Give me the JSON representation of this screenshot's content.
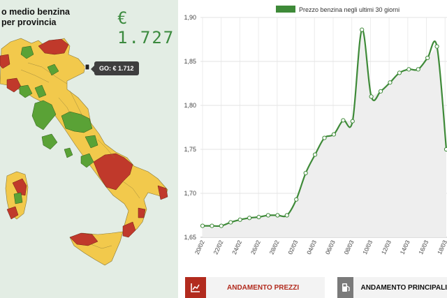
{
  "map": {
    "title_line1": "o medio benzina",
    "title_line2": "per provincia",
    "price_display": "€ 1.727",
    "tooltip": "GO: € 1.712",
    "colors": {
      "green": "#5aa236",
      "yellow": "#f2c94c",
      "red": "#c0392b"
    }
  },
  "chart": {
    "legend": "Prezzo benzina negli ultimi 30 giorni",
    "line_color": "#3e8a38"
  },
  "chart_data": {
    "type": "area",
    "title": "Prezzo benzina negli ultimi 30 giorni",
    "ylim": [
      1.65,
      1.9
    ],
    "yticks": [
      "1,65",
      "1,70",
      "1,75",
      "1,80",
      "1,85",
      "1,90"
    ],
    "ytick_values": [
      1.65,
      1.7,
      1.75,
      1.8,
      1.85,
      1.9
    ],
    "xticks": [
      "20/02",
      "22/02",
      "24/02",
      "26/02",
      "28/02",
      "02/03",
      "04/03",
      "06/03",
      "08/03",
      "10/03",
      "12/03",
      "14/03",
      "16/03",
      "18/03"
    ],
    "series": [
      {
        "values": [
          1.663,
          1.663,
          1.663,
          1.667,
          1.67,
          1.672,
          1.673,
          1.675,
          1.675,
          1.675,
          1.693,
          1.723,
          1.744,
          1.763,
          1.767,
          1.783,
          1.782,
          1.886,
          1.81,
          1.816,
          1.826,
          1.837,
          1.841,
          1.841,
          1.854,
          1.867,
          1.75
        ]
      }
    ]
  },
  "buttons": {
    "prezzi_label": "ANDAMENTO PREZZI",
    "principali_label": "ANDAMENTO PRINCIPALI"
  }
}
